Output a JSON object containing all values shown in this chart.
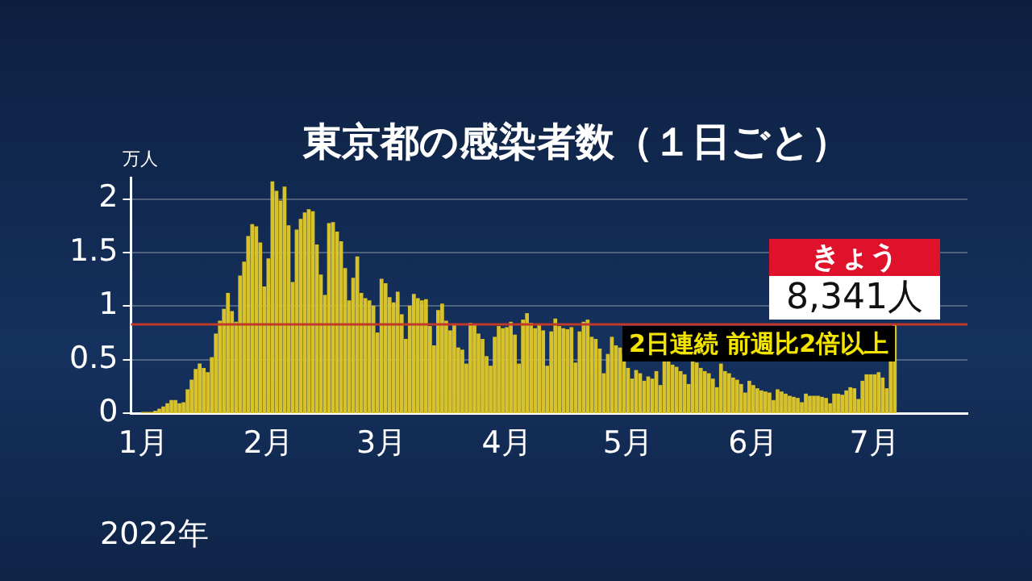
{
  "chart_data": {
    "type": "bar",
    "title": "東京都の感染者数（１日ごと）",
    "ylabel": "万人",
    "xlabel": "2022年",
    "color": "#d8c22c",
    "grid": "y",
    "legend": false,
    "ylim": [
      0,
      2.2
    ],
    "yticks": [
      0,
      0.5,
      1,
      1.5,
      2
    ],
    "xlim": [
      "2021-12-29",
      "2022-07-24"
    ],
    "xticks": [
      {
        "value": "2022-01-01",
        "label": "1月"
      },
      {
        "value": "2022-02-01",
        "label": "2月"
      },
      {
        "value": "2022-03-01",
        "label": "3月"
      },
      {
        "value": "2022-04-01",
        "label": "4月"
      },
      {
        "value": "2022-05-01",
        "label": "5月"
      },
      {
        "value": "2022-06-01",
        "label": "6月"
      },
      {
        "value": "2022-07-01",
        "label": "7月"
      }
    ],
    "x": [
      "2022-01-01",
      "2022-01-02",
      "2022-01-03",
      "2022-01-04",
      "2022-01-05",
      "2022-01-06",
      "2022-01-07",
      "2022-01-08",
      "2022-01-09",
      "2022-01-10",
      "2022-01-11",
      "2022-01-12",
      "2022-01-13",
      "2022-01-14",
      "2022-01-15",
      "2022-01-16",
      "2022-01-17",
      "2022-01-18",
      "2022-01-19",
      "2022-01-20",
      "2022-01-21",
      "2022-01-22",
      "2022-01-23",
      "2022-01-24",
      "2022-01-25",
      "2022-01-26",
      "2022-01-27",
      "2022-01-28",
      "2022-01-29",
      "2022-01-30",
      "2022-01-31",
      "2022-02-01",
      "2022-02-02",
      "2022-02-03",
      "2022-02-04",
      "2022-02-05",
      "2022-02-06",
      "2022-02-07",
      "2022-02-08",
      "2022-02-09",
      "2022-02-10",
      "2022-02-11",
      "2022-02-12",
      "2022-02-13",
      "2022-02-14",
      "2022-02-15",
      "2022-02-16",
      "2022-02-17",
      "2022-02-18",
      "2022-02-19",
      "2022-02-20",
      "2022-02-21",
      "2022-02-22",
      "2022-02-23",
      "2022-02-24",
      "2022-02-25",
      "2022-02-26",
      "2022-02-27",
      "2022-02-28",
      "2022-03-01",
      "2022-03-02",
      "2022-03-03",
      "2022-03-04",
      "2022-03-05",
      "2022-03-06",
      "2022-03-07",
      "2022-03-08",
      "2022-03-09",
      "2022-03-10",
      "2022-03-11",
      "2022-03-12",
      "2022-03-13",
      "2022-03-14",
      "2022-03-15",
      "2022-03-16",
      "2022-03-17",
      "2022-03-18",
      "2022-03-19",
      "2022-03-20",
      "2022-03-21",
      "2022-03-22",
      "2022-03-23",
      "2022-03-24",
      "2022-03-25",
      "2022-03-26",
      "2022-03-27",
      "2022-03-28",
      "2022-03-29",
      "2022-03-30",
      "2022-03-31",
      "2022-04-01",
      "2022-04-02",
      "2022-04-03",
      "2022-04-04",
      "2022-04-05",
      "2022-04-06",
      "2022-04-07",
      "2022-04-08",
      "2022-04-09",
      "2022-04-10",
      "2022-04-11",
      "2022-04-12",
      "2022-04-13",
      "2022-04-14",
      "2022-04-15",
      "2022-04-16",
      "2022-04-17",
      "2022-04-18",
      "2022-04-19",
      "2022-04-20",
      "2022-04-21",
      "2022-04-22",
      "2022-04-23",
      "2022-04-24",
      "2022-04-25",
      "2022-04-26",
      "2022-04-27",
      "2022-04-28",
      "2022-04-29",
      "2022-04-30",
      "2022-05-01",
      "2022-05-02",
      "2022-05-03",
      "2022-05-04",
      "2022-05-05",
      "2022-05-06",
      "2022-05-07",
      "2022-05-08",
      "2022-05-09",
      "2022-05-10",
      "2022-05-11",
      "2022-05-12",
      "2022-05-13",
      "2022-05-14",
      "2022-05-15",
      "2022-05-16",
      "2022-05-17",
      "2022-05-18",
      "2022-05-19",
      "2022-05-20",
      "2022-05-21",
      "2022-05-22",
      "2022-05-23",
      "2022-05-24",
      "2022-05-25",
      "2022-05-26",
      "2022-05-27",
      "2022-05-28",
      "2022-05-29",
      "2022-05-30",
      "2022-05-31",
      "2022-06-01",
      "2022-06-02",
      "2022-06-03",
      "2022-06-04",
      "2022-06-05",
      "2022-06-06",
      "2022-06-07",
      "2022-06-08",
      "2022-06-09",
      "2022-06-10",
      "2022-06-11",
      "2022-06-12",
      "2022-06-13",
      "2022-06-14",
      "2022-06-15",
      "2022-06-16",
      "2022-06-17",
      "2022-06-18",
      "2022-06-19",
      "2022-06-20",
      "2022-06-21",
      "2022-06-22",
      "2022-06-23",
      "2022-06-24",
      "2022-06-25",
      "2022-06-26",
      "2022-06-27",
      "2022-06-28",
      "2022-06-29",
      "2022-06-30",
      "2022-07-01",
      "2022-07-02",
      "2022-07-03",
      "2022-07-04",
      "2022-07-05",
      "2022-07-06"
    ],
    "values": [
      0.01,
      0.01,
      0.01,
      0.02,
      0.04,
      0.06,
      0.09,
      0.12,
      0.12,
      0.09,
      0.1,
      0.22,
      0.31,
      0.41,
      0.46,
      0.42,
      0.38,
      0.52,
      0.74,
      0.86,
      0.97,
      1.12,
      0.95,
      0.85,
      1.28,
      1.41,
      1.65,
      1.76,
      1.74,
      1.59,
      1.18,
      1.44,
      2.16,
      2.07,
      1.98,
      2.11,
      1.75,
      1.22,
      1.71,
      1.81,
      1.87,
      1.9,
      1.88,
      1.57,
      1.29,
      1.1,
      1.77,
      1.78,
      1.69,
      1.6,
      1.35,
      1.05,
      1.26,
      1.46,
      1.12,
      1.07,
      1.05,
      1.0,
      0.75,
      1.25,
      1.21,
      1.08,
      1.03,
      1.13,
      0.92,
      0.69,
      1.0,
      1.11,
      1.07,
      1.05,
      1.06,
      0.81,
      0.63,
      0.96,
      1.02,
      0.86,
      0.77,
      0.83,
      0.61,
      0.59,
      0.46,
      0.84,
      0.83,
      0.74,
      0.69,
      0.53,
      0.44,
      0.71,
      0.81,
      0.79,
      0.8,
      0.85,
      0.73,
      0.46,
      0.87,
      0.93,
      0.84,
      0.79,
      0.82,
      0.77,
      0.44,
      0.76,
      0.88,
      0.81,
      0.79,
      0.78,
      0.8,
      0.47,
      0.76,
      0.85,
      0.87,
      0.71,
      0.69,
      0.6,
      0.37,
      0.55,
      0.71,
      0.63,
      0.61,
      0.55,
      0.42,
      0.32,
      0.4,
      0.37,
      0.3,
      0.34,
      0.32,
      0.39,
      0.26,
      0.52,
      0.51,
      0.45,
      0.43,
      0.39,
      0.36,
      0.27,
      0.51,
      0.47,
      0.42,
      0.39,
      0.37,
      0.32,
      0.24,
      0.46,
      0.39,
      0.37,
      0.33,
      0.31,
      0.27,
      0.19,
      0.3,
      0.26,
      0.23,
      0.21,
      0.2,
      0.19,
      0.12,
      0.22,
      0.2,
      0.18,
      0.16,
      0.15,
      0.14,
      0.1,
      0.18,
      0.16,
      0.16,
      0.16,
      0.15,
      0.14,
      0.09,
      0.18,
      0.18,
      0.17,
      0.21,
      0.24,
      0.23,
      0.13,
      0.3,
      0.36,
      0.36,
      0.36,
      0.38,
      0.33,
      0.23,
      0.53,
      0.83
    ],
    "ref_lines": [
      {
        "axis": "y",
        "value": 0.83,
        "color": "#c0392b"
      }
    ],
    "annotations": [
      "きょう",
      "8,341人",
      "2日連続 前週比2倍以上"
    ]
  }
}
